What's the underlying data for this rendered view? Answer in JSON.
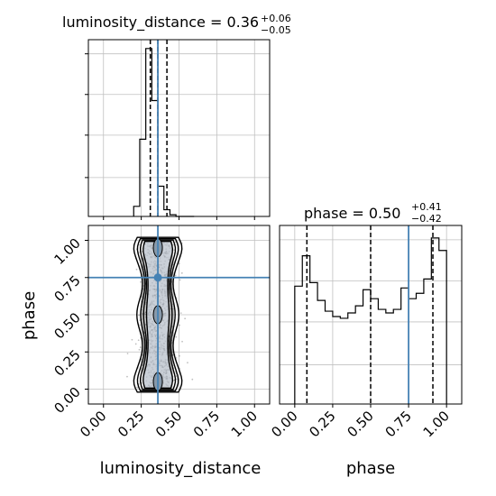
{
  "chart_data": {
    "type": "corner",
    "parameters": [
      "luminosity_distance",
      "phase"
    ],
    "truths": {
      "luminosity_distance": 0.36,
      "phase": 0.75
    },
    "colors": {
      "truth": "#4682b4",
      "hist": "#000000",
      "grid": "#c0c0c0"
    },
    "titles": {
      "luminosity_distance": {
        "main": "luminosity_distance = 0.36",
        "plus": "+0.06",
        "minus": "−0.05"
      },
      "phase": {
        "main": "phase = 0.50",
        "plus": "+0.41",
        "minus": "−0.42"
      }
    },
    "xlabels": {
      "luminosity_distance": "luminosity_distance",
      "phase": "phase"
    },
    "ylabels": {
      "phase": "phase"
    },
    "ticks": {
      "luminosity_distance": [
        "0.00",
        "0.25",
        "0.50",
        "0.75",
        "1.00"
      ],
      "phase": [
        "0.00",
        "0.25",
        "0.50",
        "0.75",
        "1.00"
      ]
    },
    "panels": [
      {
        "name": "hist-luminosity_distance",
        "kind": "hist1d",
        "xlim": [
          -0.1,
          1.1
        ],
        "ylim": [
          0,
          1.0
        ],
        "bins": [
          0.2,
          0.24,
          0.28,
          0.32,
          0.36,
          0.4,
          0.44,
          0.48,
          0.52,
          0.56,
          0.6
        ],
        "values": [
          0.06,
          0.46,
          1.0,
          0.69,
          0.18,
          0.04,
          0.01,
          0,
          0,
          0
        ],
        "quantiles": [
          0.31,
          0.36,
          0.42
        ]
      },
      {
        "name": "hist-phase",
        "kind": "hist1d",
        "xlim": [
          -0.1,
          1.1
        ],
        "ylim": [
          0,
          1.0
        ],
        "bins": [
          0.0,
          0.05,
          0.1,
          0.15,
          0.2,
          0.25,
          0.3,
          0.35,
          0.4,
          0.45,
          0.5,
          0.55,
          0.6,
          0.65,
          0.7,
          0.75,
          0.8,
          0.85,
          0.9,
          0.95,
          1.0
        ],
        "values": [
          0.66,
          0.83,
          0.68,
          0.58,
          0.52,
          0.49,
          0.48,
          0.51,
          0.55,
          0.64,
          0.59,
          0.53,
          0.51,
          0.53,
          0.65,
          0.59,
          0.62,
          0.7,
          0.93,
          0.86
        ],
        "quantiles": [
          0.08,
          0.5,
          0.91
        ]
      },
      {
        "name": "scatter-luminosity_distance-phase",
        "kind": "hist2d",
        "xlim": [
          -0.1,
          1.1
        ],
        "ylim": [
          -0.1,
          1.1
        ],
        "center_x": 0.36,
        "spread_x": 0.06,
        "y_range": [
          0.0,
          1.0
        ],
        "contour_half_widths": [
          0.07,
          0.085,
          0.1,
          0.12
        ],
        "blobs_y": [
          0.05,
          0.5,
          0.95
        ]
      }
    ]
  }
}
